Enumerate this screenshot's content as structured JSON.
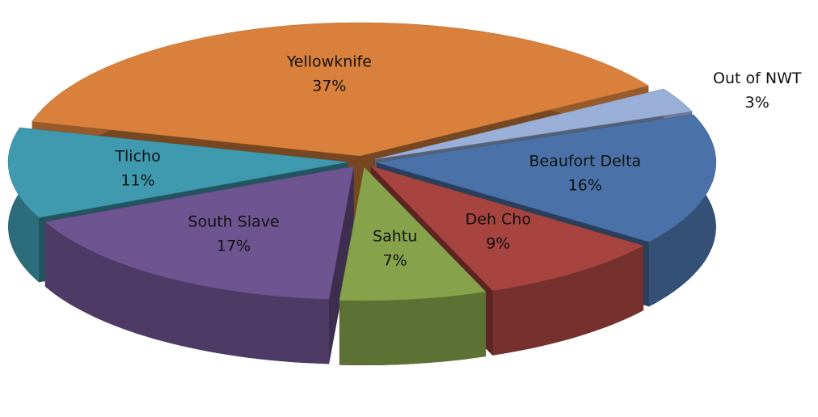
{
  "chart_data": {
    "type": "pie",
    "categories": [
      "Yellowknife",
      "Out of NWT",
      "Beaufort Delta",
      "Deh Cho",
      "Sahtu",
      "South Slave",
      "Tlicho"
    ],
    "values": [
      37,
      3,
      16,
      9,
      7,
      17,
      11
    ],
    "value_labels": [
      "37%",
      "3%",
      "16%",
      "9%",
      "7%",
      "17%",
      "11%"
    ],
    "colors": [
      "#d9813c",
      "#9aafd8",
      "#4a72a8",
      "#a84440",
      "#86a24a",
      "#6e5490",
      "#3f9ab0"
    ]
  }
}
